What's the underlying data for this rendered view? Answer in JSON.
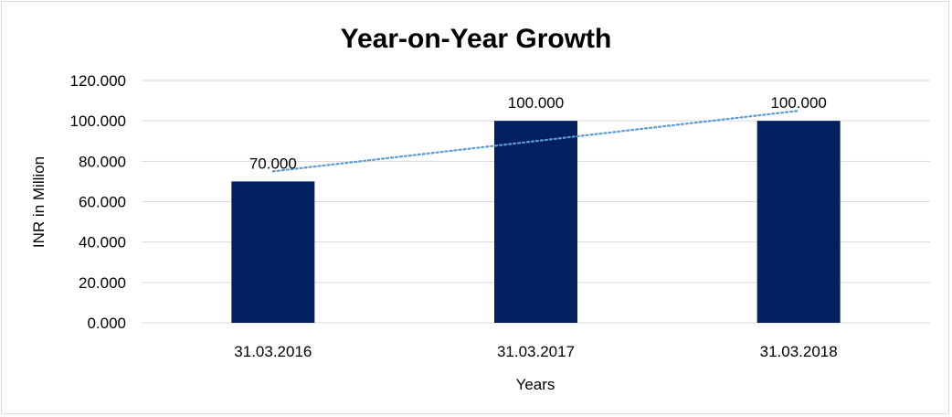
{
  "chart_data": {
    "type": "bar",
    "title": "Year-on-Year Growth",
    "xlabel": "Years",
    "ylabel": "INR in Million",
    "categories": [
      "31.03.2016",
      "31.03.2017",
      "31.03.2018"
    ],
    "values": [
      70,
      100,
      100
    ],
    "data_labels": [
      "70.000",
      "100.000",
      "100.000"
    ],
    "ylim": [
      0,
      120
    ],
    "yticks": [
      "0.000",
      "20.000",
      "40.000",
      "60.000",
      "80.000",
      "100.000",
      "120.000"
    ],
    "grid": true,
    "legend": "none",
    "trendline": {
      "type": "linear",
      "style": "dotted"
    },
    "colors": {
      "bar": "#002060",
      "trendline": "#5b9bd5",
      "grid": "#d9d9d9"
    }
  }
}
